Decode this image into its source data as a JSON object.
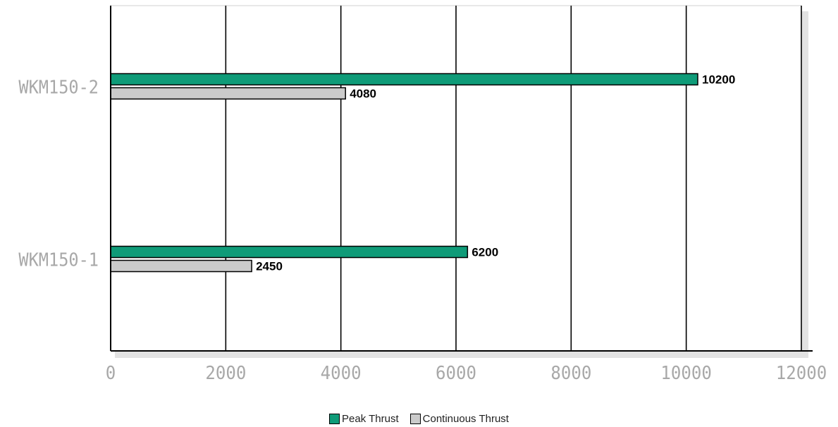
{
  "chart_data": {
    "type": "bar",
    "orientation": "horizontal",
    "categories": [
      "WKM150-1",
      "WKM150-2"
    ],
    "series": [
      {
        "name": "Peak Thrust",
        "values": [
          6200,
          10200
        ],
        "color": "#0f9b78"
      },
      {
        "name": "Continuous Thrust",
        "values": [
          2450,
          4080
        ],
        "color": "#cbcbcb"
      }
    ],
    "xlim": [
      0,
      12000
    ],
    "xticks": [
      0,
      2000,
      4000,
      6000,
      8000,
      10000,
      12000
    ],
    "title": "",
    "xlabel": "",
    "ylabel": "",
    "grid": "vertical",
    "legend_position": "bottom-center"
  }
}
